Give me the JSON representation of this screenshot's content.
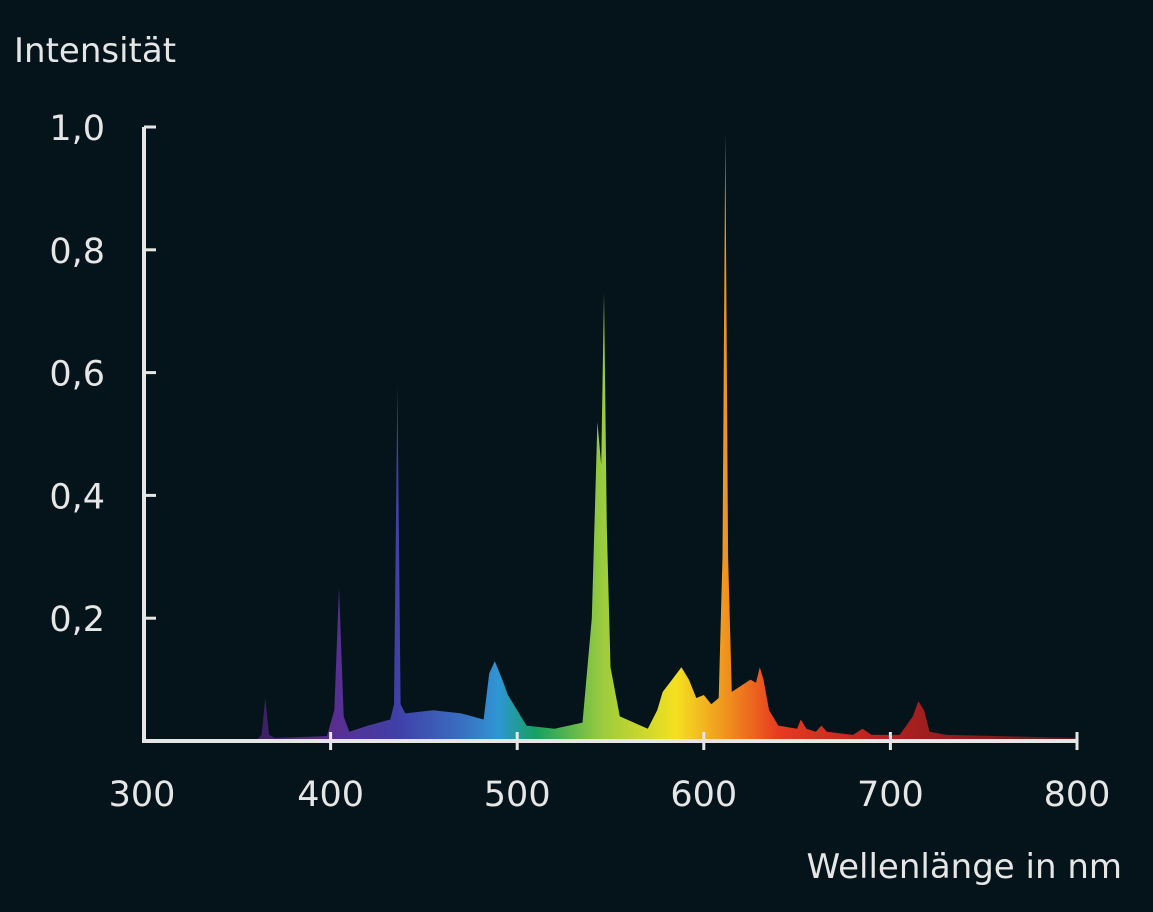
{
  "chart_data": {
    "type": "area",
    "title": "",
    "ylabel": "Intensität",
    "xlabel": "Wellenlänge in nm",
    "xlim": [
      300,
      800
    ],
    "ylim": [
      0,
      1.0
    ],
    "xticks": [
      300,
      400,
      500,
      600,
      700,
      800
    ],
    "xtick_labels": [
      "300",
      "400",
      "500",
      "600",
      "700",
      "800"
    ],
    "yticks": [
      0.2,
      0.4,
      0.6,
      0.8,
      1.0
    ],
    "ytick_labels": [
      "0,2",
      "0,4",
      "0,6",
      "0,8",
      "1,0"
    ],
    "grid": false,
    "fill": "spectral rainbow gradient by wavelength",
    "background_color": "#04141a",
    "axis_color": "#e6e6e6",
    "series": [
      {
        "x": [
          360,
          363,
          365,
          367,
          370,
          398,
          402,
          404.5,
          407,
          410,
          420,
          432,
          434,
          435.8,
          437.5,
          440,
          455,
          470,
          482,
          485,
          488,
          492,
          495,
          500,
          505,
          520,
          535,
          540,
          543,
          545,
          546.5,
          548,
          550,
          555,
          570,
          575,
          578,
          583,
          588,
          592,
          596,
          600,
          604,
          608,
          610,
          611.5,
          613,
          615,
          620,
          625,
          628,
          630,
          632,
          635,
          640,
          650,
          652,
          655,
          660,
          663,
          666,
          680,
          685,
          690,
          705,
          712,
          715,
          718,
          721,
          730,
          800
        ],
        "y": [
          0,
          0.01,
          0.07,
          0.01,
          0.005,
          0.008,
          0.05,
          0.25,
          0.04,
          0.015,
          0.025,
          0.035,
          0.06,
          0.58,
          0.06,
          0.045,
          0.05,
          0.045,
          0.035,
          0.11,
          0.13,
          0.1,
          0.075,
          0.05,
          0.025,
          0.02,
          0.03,
          0.2,
          0.52,
          0.45,
          0.73,
          0.35,
          0.12,
          0.04,
          0.02,
          0.05,
          0.08,
          0.1,
          0.12,
          0.1,
          0.07,
          0.075,
          0.06,
          0.07,
          0.3,
          0.99,
          0.3,
          0.08,
          0.09,
          0.1,
          0.095,
          0.12,
          0.1,
          0.05,
          0.025,
          0.02,
          0.035,
          0.02,
          0.015,
          0.025,
          0.015,
          0.01,
          0.02,
          0.01,
          0.01,
          0.04,
          0.065,
          0.05,
          0.015,
          0.01,
          0.005
        ]
      }
    ],
    "gradient_stops": [
      {
        "nm": 360,
        "color": "#3a2060"
      },
      {
        "nm": 400,
        "color": "#5a2d8f"
      },
      {
        "nm": 436,
        "color": "#4040a8"
      },
      {
        "nm": 470,
        "color": "#3a6ec0"
      },
      {
        "nm": 490,
        "color": "#2f96d4"
      },
      {
        "nm": 510,
        "color": "#16a060"
      },
      {
        "nm": 546,
        "color": "#9ccc3c"
      },
      {
        "nm": 585,
        "color": "#f4e020"
      },
      {
        "nm": 611,
        "color": "#f0961e"
      },
      {
        "nm": 640,
        "color": "#e83a20"
      },
      {
        "nm": 700,
        "color": "#b02020"
      },
      {
        "nm": 800,
        "color": "#5a1818"
      }
    ]
  }
}
